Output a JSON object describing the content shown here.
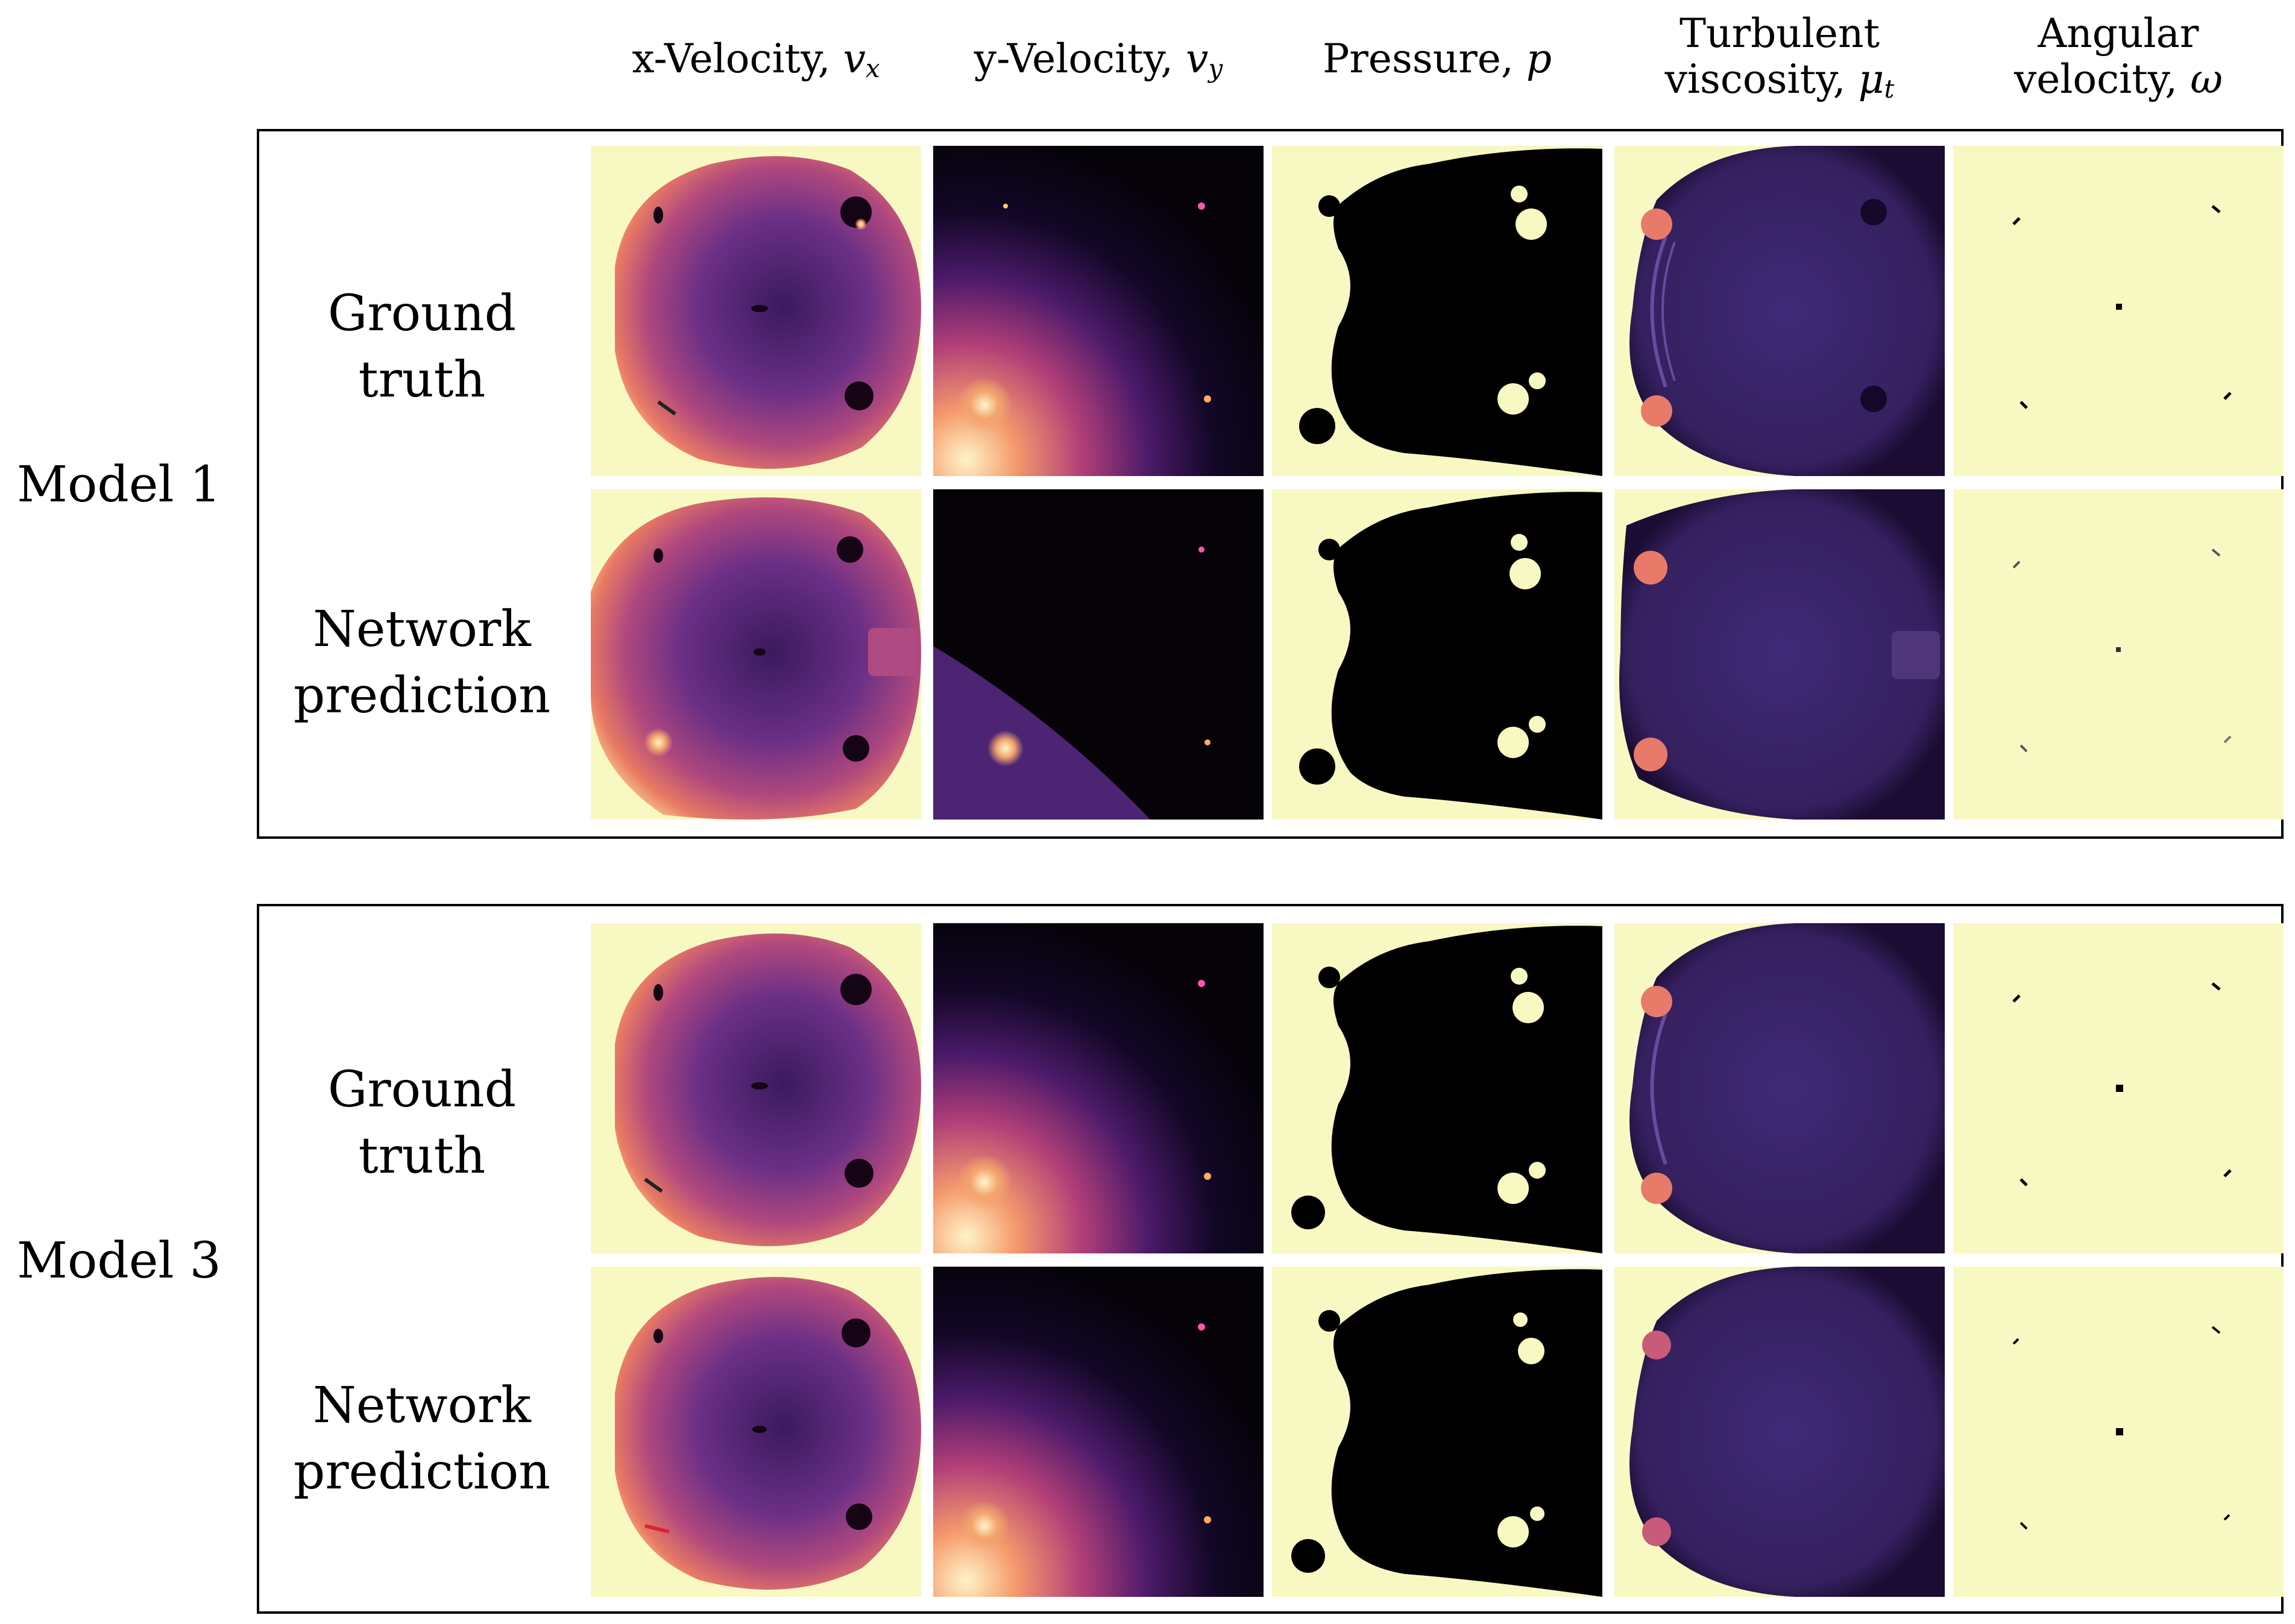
{
  "columns": [
    {
      "name": "x-Velocity, ",
      "symbol": "v",
      "sub": "x"
    },
    {
      "name": "y-Velocity, ",
      "symbol": "v",
      "sub": "y"
    },
    {
      "name": "Pressure, ",
      "symbol": "p",
      "sub": ""
    },
    {
      "line1": "Turbulent",
      "name": "viscosity, ",
      "symbol": "μ",
      "sub": "t"
    },
    {
      "line1": "Angular",
      "name": "velocity, ",
      "symbol": "ω",
      "sub": ""
    }
  ],
  "models": [
    {
      "label": "Model 1",
      "rows": [
        {
          "label": "Ground truth"
        },
        {
          "label_line1": "Network",
          "label_line2": "prediction"
        }
      ]
    },
    {
      "label": "Model 3",
      "rows": [
        {
          "label": "Ground truth"
        },
        {
          "label_line1": "Network",
          "label_line2": "prediction"
        }
      ]
    }
  ],
  "colors": {
    "background_field": "#f8f8c2",
    "dark_field": "#0b0312",
    "purple": "#5a2a7e",
    "orange": "#f07a5a"
  }
}
